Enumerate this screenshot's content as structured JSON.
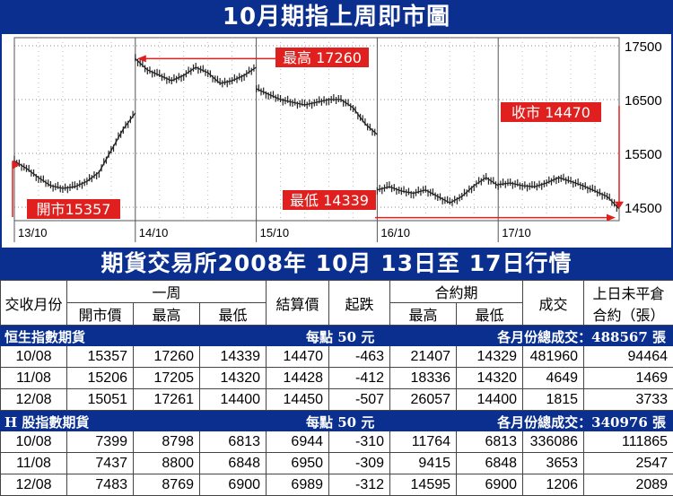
{
  "chart_title": "10月期指上周即市圖",
  "chart_data": {
    "type": "line",
    "title": "10月期指上周即市圖",
    "ylim": [
      14250,
      17650
    ],
    "y_ticks": [
      17500,
      16500,
      15500,
      14500
    ],
    "x_tick_labels": [
      "13/10",
      "14/10",
      "15/10",
      "16/10",
      "17/10"
    ],
    "series": [
      {
        "points": [
          [
            0,
            15357
          ],
          [
            0.1,
            15220
          ],
          [
            0.2,
            15050
          ],
          [
            0.3,
            14900
          ],
          [
            0.4,
            14850
          ],
          [
            0.5,
            14880
          ],
          [
            0.6,
            14980
          ],
          [
            0.7,
            15150
          ],
          [
            0.8,
            15550
          ],
          [
            0.9,
            15950
          ],
          [
            1.0,
            16250
          ]
        ]
      },
      {
        "points": [
          [
            1.0,
            17260
          ],
          [
            1.1,
            17050
          ],
          [
            1.2,
            16950
          ],
          [
            1.3,
            16850
          ],
          [
            1.4,
            16950
          ],
          [
            1.5,
            17100
          ],
          [
            1.6,
            17000
          ],
          [
            1.7,
            16800
          ],
          [
            1.8,
            16850
          ],
          [
            1.9,
            16950
          ],
          [
            2.0,
            17100
          ]
        ]
      },
      {
        "points": [
          [
            2.0,
            16700
          ],
          [
            2.1,
            16600
          ],
          [
            2.2,
            16500
          ],
          [
            2.3,
            16450
          ],
          [
            2.4,
            16400
          ],
          [
            2.5,
            16450
          ],
          [
            2.6,
            16500
          ],
          [
            2.7,
            16500
          ],
          [
            2.8,
            16350
          ],
          [
            2.9,
            16050
          ],
          [
            3.0,
            15850
          ]
        ]
      },
      {
        "points": [
          [
            3.0,
            14820
          ],
          [
            3.1,
            14880
          ],
          [
            3.2,
            14800
          ],
          [
            3.3,
            14760
          ],
          [
            3.4,
            14820
          ],
          [
            3.5,
            14700
          ],
          [
            3.6,
            14580
          ],
          [
            3.7,
            14700
          ],
          [
            3.8,
            14900
          ],
          [
            3.9,
            15050
          ],
          [
            4.0,
            14900
          ]
        ]
      },
      {
        "points": [
          [
            4.0,
            14920
          ],
          [
            4.1,
            14950
          ],
          [
            4.2,
            14900
          ],
          [
            4.3,
            14880
          ],
          [
            4.4,
            14950
          ],
          [
            4.5,
            15050
          ],
          [
            4.6,
            14980
          ],
          [
            4.7,
            14900
          ],
          [
            4.8,
            14800
          ],
          [
            4.9,
            14700
          ],
          [
            5.0,
            14470
          ]
        ]
      }
    ],
    "annotations": [
      {
        "label": "開市15357",
        "value": 15357
      },
      {
        "label": "最高 17260",
        "value": 17260
      },
      {
        "label": "收市 14470",
        "value": 14470
      },
      {
        "label": "最低 14339",
        "value": 14339
      }
    ]
  },
  "table_title": "期貨交易所2008年 10月 13日至 17日行情",
  "headers": {
    "month": "交收月份",
    "week": "一周",
    "open": "開市價",
    "high": "最高",
    "low": "最低",
    "settle": "結算價",
    "change": "起跌",
    "contract": "合約期",
    "c_high": "最高",
    "c_low": "最低",
    "volume": "成交",
    "oi_line1": "上日未平倉",
    "oi_line2": "合約（張）"
  },
  "sections": [
    {
      "name": "恒生指數期貨",
      "per_point": "每點 50 元",
      "total_volume": "各月份總成交：488567 張",
      "rows": [
        [
          "10/08",
          "15357",
          "17260",
          "14339",
          "14470",
          "-463",
          "21407",
          "14329",
          "481960",
          "94464"
        ],
        [
          "11/08",
          "15206",
          "17205",
          "14320",
          "14428",
          "-412",
          "18336",
          "14320",
          "4649",
          "1469"
        ],
        [
          "12/08",
          "15051",
          "17261",
          "14400",
          "14450",
          "-507",
          "26057",
          "14400",
          "1815",
          "3733"
        ]
      ]
    },
    {
      "name": "H 股指數期貨",
      "per_point": "每點 50 元",
      "total_volume": "各月份總成交：340976 張",
      "rows": [
        [
          "10/08",
          "7399",
          "8798",
          "6813",
          "6944",
          "-310",
          "11764",
          "6813",
          "336086",
          "111865"
        ],
        [
          "11/08",
          "7437",
          "8800",
          "6848",
          "6950",
          "-309",
          "9415",
          "6848",
          "3653",
          "2547"
        ],
        [
          "12/08",
          "7483",
          "8769",
          "6900",
          "6989",
          "-312",
          "14595",
          "6900",
          "1206",
          "2089"
        ]
      ]
    }
  ]
}
